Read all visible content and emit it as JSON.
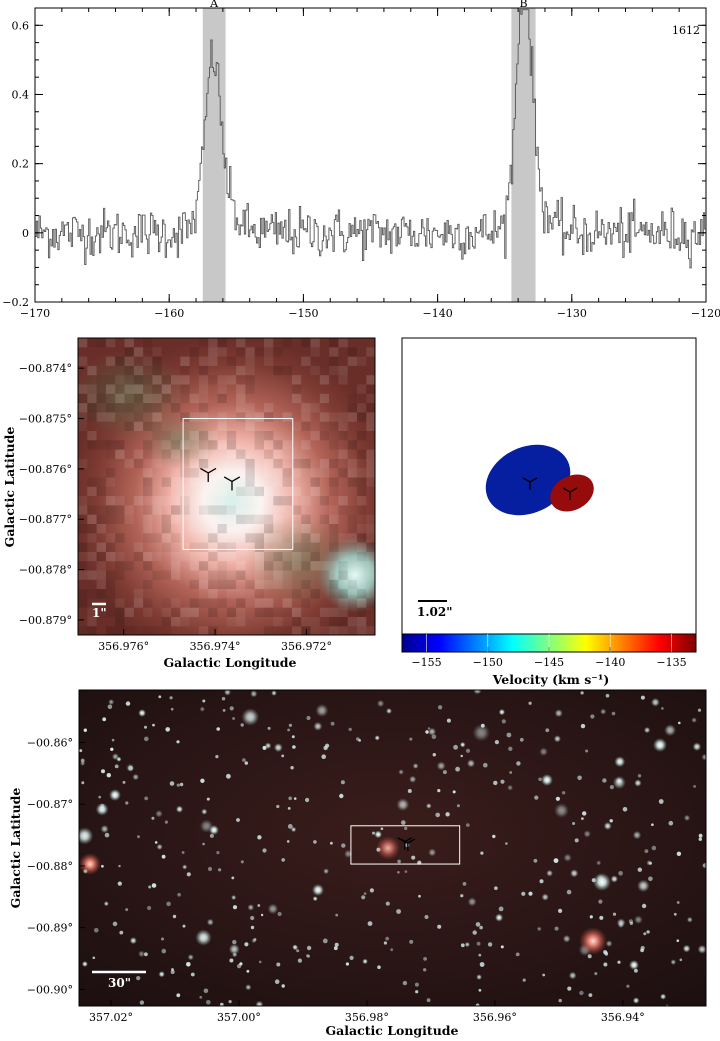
{
  "chart_data": [
    {
      "type": "line",
      "panel": "spectrum",
      "title": "",
      "xlabel": "",
      "ylabel": "",
      "annotation": "1612",
      "xlim": [
        -170,
        -120
      ],
      "ylim": [
        -0.2,
        0.65
      ],
      "xticks": [
        -170,
        -160,
        -150,
        -140,
        -130,
        -120
      ],
      "yticks": [
        -0.2,
        0,
        0.2,
        0.4,
        0.6
      ],
      "highlight_regions": [
        {
          "label": "A",
          "x": [
            -157.5,
            -155.8
          ]
        },
        {
          "label": "B",
          "x": [
            -134.5,
            -132.7
          ]
        }
      ],
      "peaks": [
        {
          "label": "A",
          "x": -156.8,
          "y": 0.4
        },
        {
          "label": "B",
          "x": -133.6,
          "y": 0.62
        }
      ],
      "noise_rms": 0.035
    },
    {
      "type": "image",
      "panel": "zoom-image",
      "xlabel": "Galactic Longitude",
      "ylabel": "Galactic Latitude",
      "xlim": [
        356.977,
        356.9705
      ],
      "ylim": [
        -0.8793,
        -0.8734
      ],
      "xticks": [
        "356.976°",
        "356.974°",
        "356.972°"
      ],
      "xtick_values": [
        356.976,
        356.974,
        356.972
      ],
      "yticks": [
        "−00.874°",
        "−00.875°",
        "−00.876°",
        "−00.877°",
        "−00.878°",
        "−00.879°"
      ],
      "ytick_values": [
        -0.874,
        -0.875,
        -0.876,
        -0.877,
        -0.878,
        -0.879
      ],
      "scalebar": "1\"",
      "box": {
        "lon": [
          356.9747,
          356.9723
        ],
        "lat": [
          -0.875,
          -0.8776
        ]
      },
      "markers": [
        {
          "label": "A",
          "lon": 356.97415,
          "lat": -0.87608
        },
        {
          "label": "B",
          "lon": 356.97363,
          "lat": -0.87625
        }
      ]
    },
    {
      "type": "scatter",
      "panel": "maser-spots",
      "xlabel": "",
      "ylabel": "",
      "scalebar": "1.02\"",
      "colorbar": {
        "label": "Velocity (km s⁻¹)",
        "range": [
          -157,
          -133
        ],
        "ticks": [
          -155,
          -150,
          -145,
          -140,
          -135
        ]
      },
      "spots": [
        {
          "label": "A",
          "velocity": -156.5,
          "color": "#061fa0"
        },
        {
          "label": "B",
          "velocity": -133.6,
          "color": "#960c0c"
        }
      ]
    },
    {
      "type": "image",
      "panel": "wide-field",
      "xlabel": "Galactic Longitude",
      "ylabel": "Galactic Latitude",
      "xlim": [
        357.025,
        356.927
      ],
      "ylim": [
        -0.9027,
        -0.8515
      ],
      "xticks": [
        "357.02°",
        "357.00°",
        "356.98°",
        "356.96°",
        "356.94°"
      ],
      "xtick_values": [
        357.02,
        357.0,
        356.98,
        356.96,
        356.94
      ],
      "yticks": [
        "−00.86°",
        "−00.87°",
        "−00.88°",
        "−00.89°",
        "−00.90°"
      ],
      "ytick_values": [
        -0.86,
        -0.87,
        -0.88,
        -0.89,
        -0.9
      ],
      "scalebar": "30\"",
      "box": {
        "lon": [
          356.9775,
          356.9705
        ],
        "lat": [
          -0.8737,
          -0.8793
        ]
      },
      "markers": [
        {
          "label": "A",
          "lon": 356.9741,
          "lat": -0.8761
        },
        {
          "label": "B",
          "lon": 356.9736,
          "lat": -0.8763
        }
      ]
    }
  ]
}
